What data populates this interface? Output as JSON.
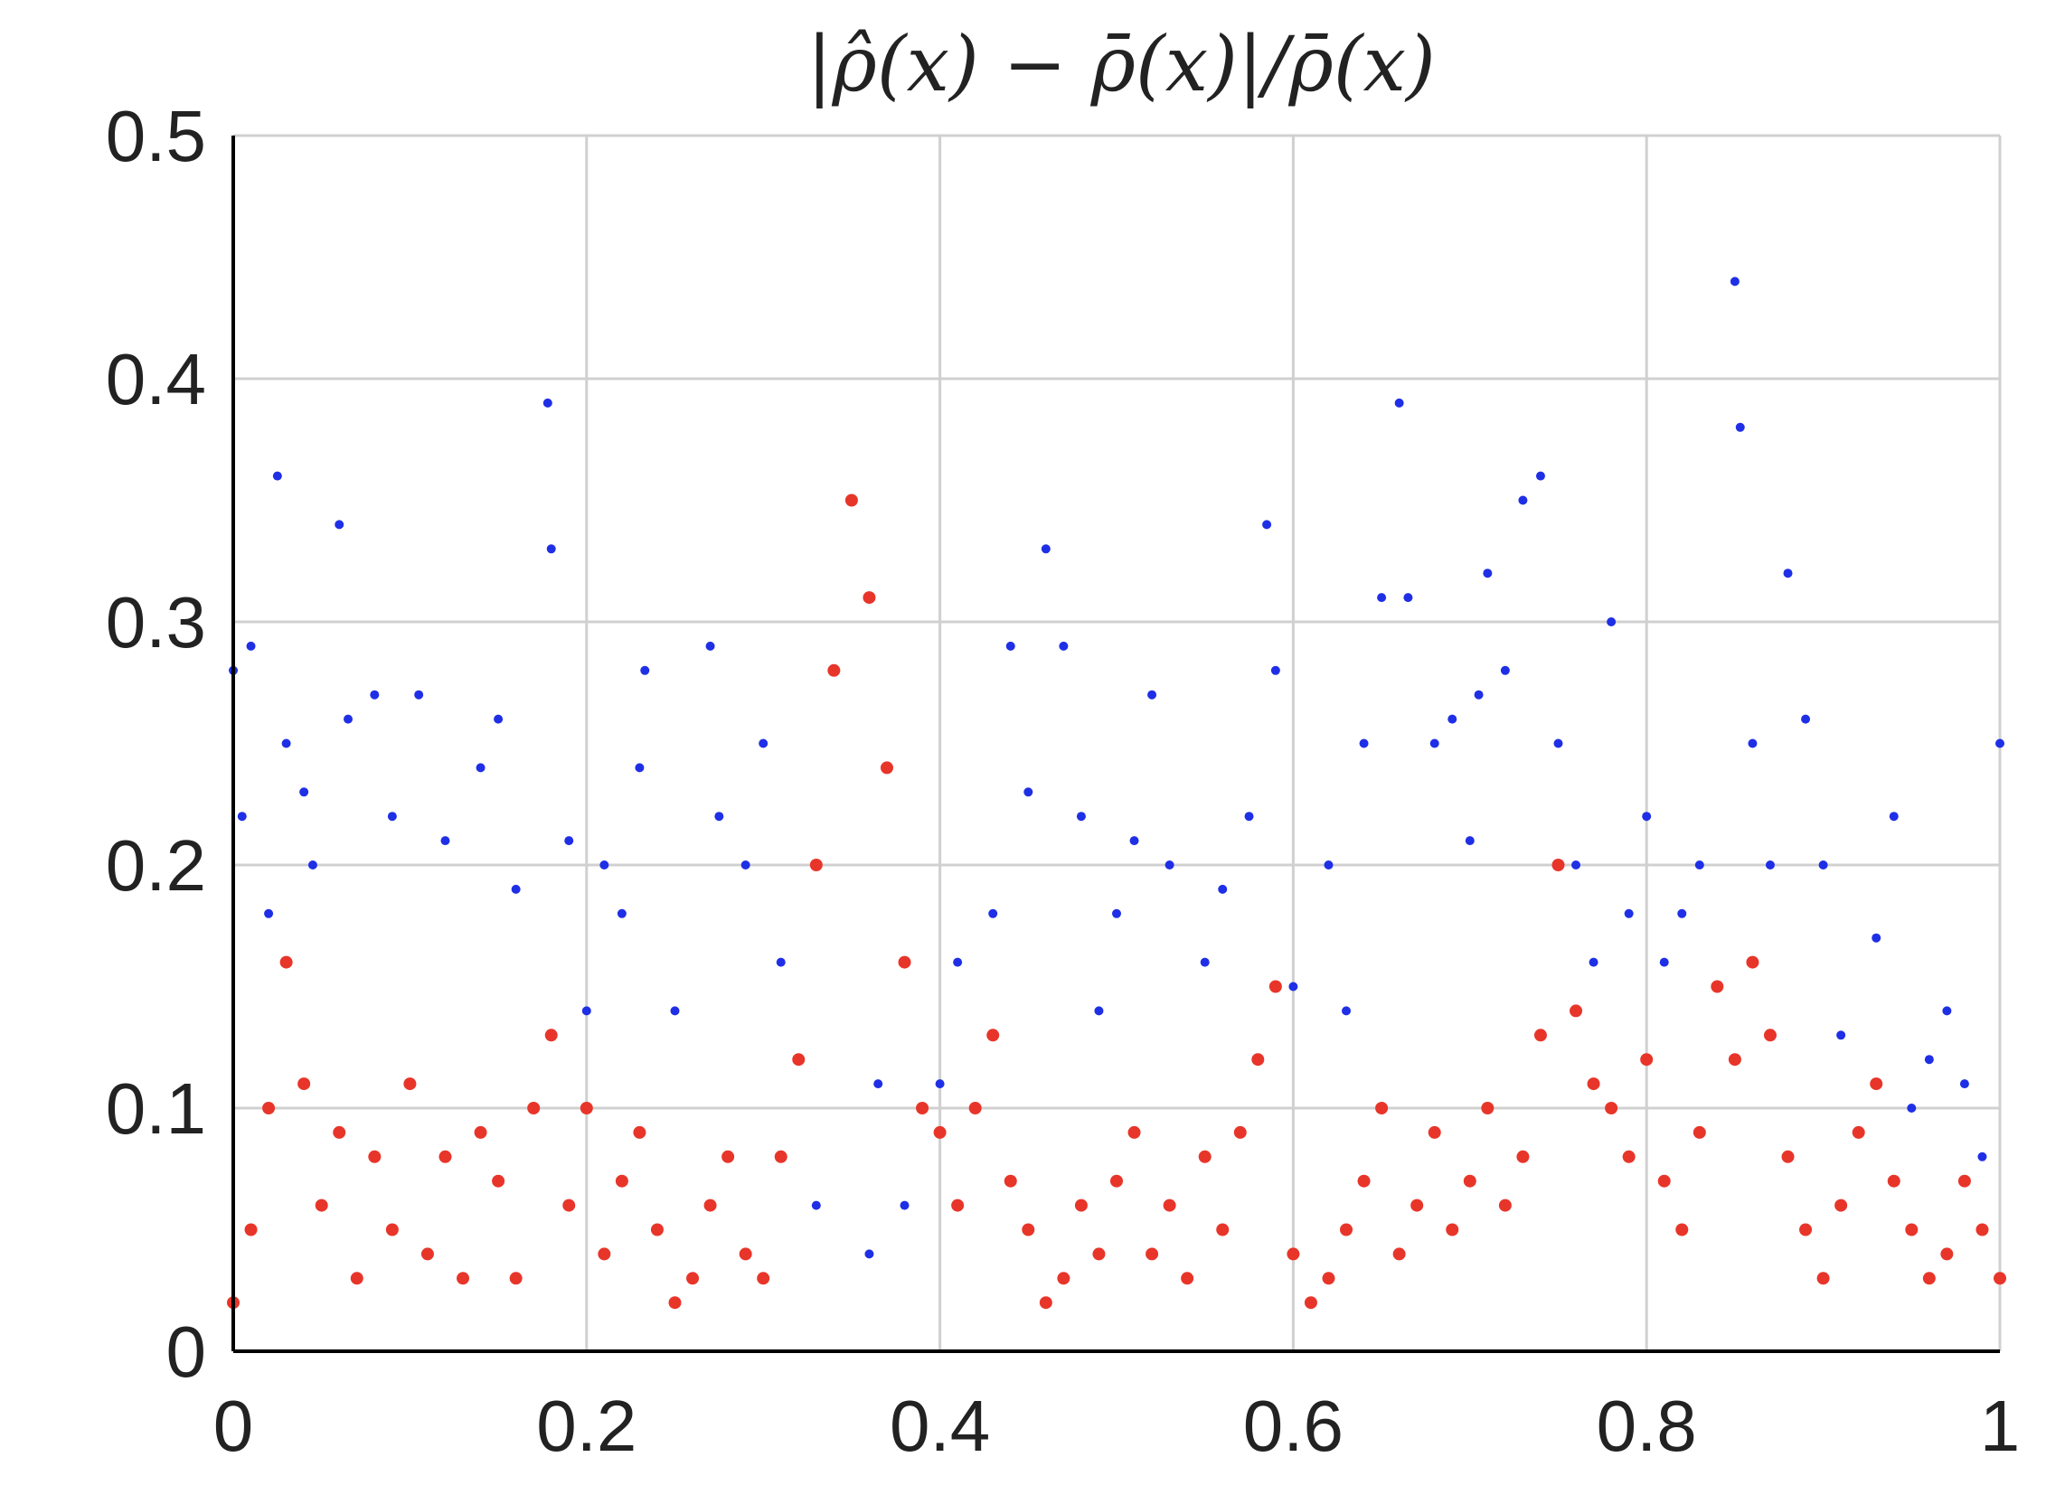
{
  "chart_data": {
    "type": "scatter",
    "title": "|ρ̂(x) − ρ̄(x)|/ρ̄(x)",
    "xlabel": "",
    "ylabel": "",
    "xlim": [
      0,
      1
    ],
    "ylim": [
      0,
      0.5
    ],
    "x_ticks": [
      "0",
      "0.2",
      "0.4",
      "0.6",
      "0.8",
      "1"
    ],
    "y_ticks": [
      "0",
      "0.1",
      "0.2",
      "0.3",
      "0.4",
      "0.5"
    ],
    "grid": true,
    "legend": "none",
    "series": [
      {
        "color": "#1f2fe6",
        "marker": "dot",
        "points": [
          [
            0.0,
            0.28
          ],
          [
            0.005,
            0.22
          ],
          [
            0.01,
            0.29
          ],
          [
            0.02,
            0.18
          ],
          [
            0.025,
            0.36
          ],
          [
            0.03,
            0.25
          ],
          [
            0.04,
            0.23
          ],
          [
            0.045,
            0.2
          ],
          [
            0.06,
            0.34
          ],
          [
            0.065,
            0.26
          ],
          [
            0.08,
            0.27
          ],
          [
            0.09,
            0.22
          ],
          [
            0.105,
            0.27
          ],
          [
            0.12,
            0.21
          ],
          [
            0.14,
            0.24
          ],
          [
            0.15,
            0.26
          ],
          [
            0.16,
            0.19
          ],
          [
            0.178,
            0.39
          ],
          [
            0.18,
            0.33
          ],
          [
            0.19,
            0.21
          ],
          [
            0.2,
            0.14
          ],
          [
            0.21,
            0.2
          ],
          [
            0.22,
            0.18
          ],
          [
            0.23,
            0.24
          ],
          [
            0.233,
            0.28
          ],
          [
            0.25,
            0.14
          ],
          [
            0.27,
            0.29
          ],
          [
            0.275,
            0.22
          ],
          [
            0.29,
            0.2
          ],
          [
            0.3,
            0.25
          ],
          [
            0.31,
            0.16
          ],
          [
            0.33,
            0.06
          ],
          [
            0.36,
            0.04
          ],
          [
            0.365,
            0.11
          ],
          [
            0.38,
            0.06
          ],
          [
            0.4,
            0.11
          ],
          [
            0.41,
            0.16
          ],
          [
            0.43,
            0.18
          ],
          [
            0.44,
            0.29
          ],
          [
            0.45,
            0.23
          ],
          [
            0.46,
            0.33
          ],
          [
            0.47,
            0.29
          ],
          [
            0.48,
            0.22
          ],
          [
            0.49,
            0.14
          ],
          [
            0.5,
            0.18
          ],
          [
            0.51,
            0.21
          ],
          [
            0.52,
            0.27
          ],
          [
            0.53,
            0.2
          ],
          [
            0.55,
            0.16
          ],
          [
            0.56,
            0.19
          ],
          [
            0.575,
            0.22
          ],
          [
            0.585,
            0.34
          ],
          [
            0.59,
            0.28
          ],
          [
            0.6,
            0.15
          ],
          [
            0.62,
            0.2
          ],
          [
            0.63,
            0.14
          ],
          [
            0.64,
            0.25
          ],
          [
            0.65,
            0.31
          ],
          [
            0.66,
            0.39
          ],
          [
            0.665,
            0.31
          ],
          [
            0.68,
            0.25
          ],
          [
            0.69,
            0.26
          ],
          [
            0.7,
            0.21
          ],
          [
            0.705,
            0.27
          ],
          [
            0.71,
            0.32
          ],
          [
            0.72,
            0.28
          ],
          [
            0.73,
            0.35
          ],
          [
            0.74,
            0.36
          ],
          [
            0.75,
            0.25
          ],
          [
            0.76,
            0.2
          ],
          [
            0.77,
            0.16
          ],
          [
            0.78,
            0.3
          ],
          [
            0.79,
            0.18
          ],
          [
            0.8,
            0.22
          ],
          [
            0.81,
            0.16
          ],
          [
            0.82,
            0.18
          ],
          [
            0.83,
            0.2
          ],
          [
            0.85,
            0.44
          ],
          [
            0.853,
            0.38
          ],
          [
            0.86,
            0.25
          ],
          [
            0.87,
            0.2
          ],
          [
            0.88,
            0.32
          ],
          [
            0.89,
            0.26
          ],
          [
            0.9,
            0.2
          ],
          [
            0.91,
            0.13
          ],
          [
            0.93,
            0.17
          ],
          [
            0.94,
            0.22
          ],
          [
            0.95,
            0.1
          ],
          [
            0.96,
            0.12
          ],
          [
            0.97,
            0.14
          ],
          [
            0.98,
            0.11
          ],
          [
            0.99,
            0.08
          ],
          [
            1.0,
            0.25
          ]
        ]
      },
      {
        "color": "#e8352a",
        "marker": "dot",
        "points": [
          [
            0.0,
            0.02
          ],
          [
            0.01,
            0.05
          ],
          [
            0.02,
            0.1
          ],
          [
            0.03,
            0.16
          ],
          [
            0.04,
            0.11
          ],
          [
            0.05,
            0.06
          ],
          [
            0.06,
            0.09
          ],
          [
            0.07,
            0.03
          ],
          [
            0.08,
            0.08
          ],
          [
            0.09,
            0.05
          ],
          [
            0.1,
            0.11
          ],
          [
            0.11,
            0.04
          ],
          [
            0.12,
            0.08
          ],
          [
            0.13,
            0.03
          ],
          [
            0.14,
            0.09
          ],
          [
            0.15,
            0.07
          ],
          [
            0.16,
            0.03
          ],
          [
            0.17,
            0.1
          ],
          [
            0.18,
            0.13
          ],
          [
            0.19,
            0.06
          ],
          [
            0.2,
            0.1
          ],
          [
            0.21,
            0.04
          ],
          [
            0.22,
            0.07
          ],
          [
            0.23,
            0.09
          ],
          [
            0.24,
            0.05
          ],
          [
            0.25,
            0.02
          ],
          [
            0.26,
            0.03
          ],
          [
            0.27,
            0.06
          ],
          [
            0.28,
            0.08
          ],
          [
            0.29,
            0.04
          ],
          [
            0.3,
            0.03
          ],
          [
            0.31,
            0.08
          ],
          [
            0.32,
            0.12
          ],
          [
            0.33,
            0.2
          ],
          [
            0.34,
            0.28
          ],
          [
            0.35,
            0.35
          ],
          [
            0.36,
            0.31
          ],
          [
            0.37,
            0.24
          ],
          [
            0.38,
            0.16
          ],
          [
            0.39,
            0.1
          ],
          [
            0.4,
            0.09
          ],
          [
            0.41,
            0.06
          ],
          [
            0.42,
            0.1
          ],
          [
            0.43,
            0.13
          ],
          [
            0.44,
            0.07
          ],
          [
            0.45,
            0.05
          ],
          [
            0.46,
            0.02
          ],
          [
            0.47,
            0.03
          ],
          [
            0.48,
            0.06
          ],
          [
            0.49,
            0.04
          ],
          [
            0.5,
            0.07
          ],
          [
            0.51,
            0.09
          ],
          [
            0.52,
            0.04
          ],
          [
            0.53,
            0.06
          ],
          [
            0.54,
            0.03
          ],
          [
            0.55,
            0.08
          ],
          [
            0.56,
            0.05
          ],
          [
            0.57,
            0.09
          ],
          [
            0.58,
            0.12
          ],
          [
            0.59,
            0.15
          ],
          [
            0.6,
            0.04
          ],
          [
            0.61,
            0.02
          ],
          [
            0.62,
            0.03
          ],
          [
            0.63,
            0.05
          ],
          [
            0.64,
            0.07
          ],
          [
            0.65,
            0.1
          ],
          [
            0.66,
            0.04
          ],
          [
            0.67,
            0.06
          ],
          [
            0.68,
            0.09
          ],
          [
            0.69,
            0.05
          ],
          [
            0.7,
            0.07
          ],
          [
            0.71,
            0.1
          ],
          [
            0.72,
            0.06
          ],
          [
            0.73,
            0.08
          ],
          [
            0.74,
            0.13
          ],
          [
            0.75,
            0.2
          ],
          [
            0.76,
            0.14
          ],
          [
            0.77,
            0.11
          ],
          [
            0.78,
            0.1
          ],
          [
            0.79,
            0.08
          ],
          [
            0.8,
            0.12
          ],
          [
            0.81,
            0.07
          ],
          [
            0.82,
            0.05
          ],
          [
            0.83,
            0.09
          ],
          [
            0.84,
            0.15
          ],
          [
            0.85,
            0.12
          ],
          [
            0.86,
            0.16
          ],
          [
            0.87,
            0.13
          ],
          [
            0.88,
            0.08
          ],
          [
            0.89,
            0.05
          ],
          [
            0.9,
            0.03
          ],
          [
            0.91,
            0.06
          ],
          [
            0.92,
            0.09
          ],
          [
            0.93,
            0.11
          ],
          [
            0.94,
            0.07
          ],
          [
            0.95,
            0.05
          ],
          [
            0.96,
            0.03
          ],
          [
            0.97,
            0.04
          ],
          [
            0.98,
            0.07
          ],
          [
            0.99,
            0.05
          ],
          [
            1.0,
            0.03
          ]
        ]
      }
    ]
  }
}
